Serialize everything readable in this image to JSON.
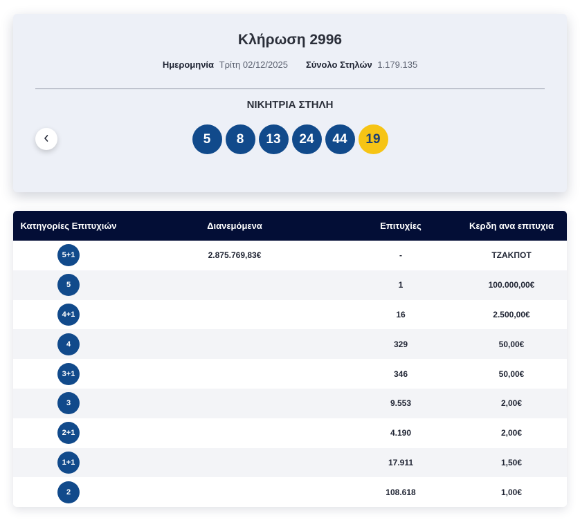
{
  "draw": {
    "title": "Κλήρωση 2996",
    "date_label": "Ημερομηνία",
    "date_value": "Τρίτη 02/12/2025",
    "columns_label": "Σύνολο Στηλών",
    "columns_value": "1.179.135",
    "winning_label": "ΝΙΚΗΤΡΙΑ ΣΤΗΛΗ",
    "numbers": [
      "5",
      "8",
      "13",
      "24",
      "44"
    ],
    "joker": "19",
    "prev_icon": "chevron-left-icon"
  },
  "colors": {
    "ball": "#114a8b",
    "joker": "#f6c415",
    "table_header": "#030e36",
    "card_bg": "#edf0f7"
  },
  "table": {
    "headers": [
      "Κατηγορίες Επιτυχιών",
      "Διανεμόμενα",
      "Επιτυχίες",
      "Κερδη ανα επιτυχια"
    ],
    "rows": [
      {
        "category": "5+1",
        "distributed": "2.875.769,83€",
        "winners": "-",
        "prize": "ΤΖΑΚΠΟΤ"
      },
      {
        "category": "5",
        "distributed": "",
        "winners": "1",
        "prize": "100.000,00€"
      },
      {
        "category": "4+1",
        "distributed": "",
        "winners": "16",
        "prize": "2.500,00€"
      },
      {
        "category": "4",
        "distributed": "",
        "winners": "329",
        "prize": "50,00€"
      },
      {
        "category": "3+1",
        "distributed": "",
        "winners": "346",
        "prize": "50,00€"
      },
      {
        "category": "3",
        "distributed": "",
        "winners": "9.553",
        "prize": "2,00€"
      },
      {
        "category": "2+1",
        "distributed": "",
        "winners": "4.190",
        "prize": "2,00€"
      },
      {
        "category": "1+1",
        "distributed": "",
        "winners": "17.911",
        "prize": "1,50€"
      },
      {
        "category": "2",
        "distributed": "",
        "winners": "108.618",
        "prize": "1,00€"
      }
    ]
  }
}
